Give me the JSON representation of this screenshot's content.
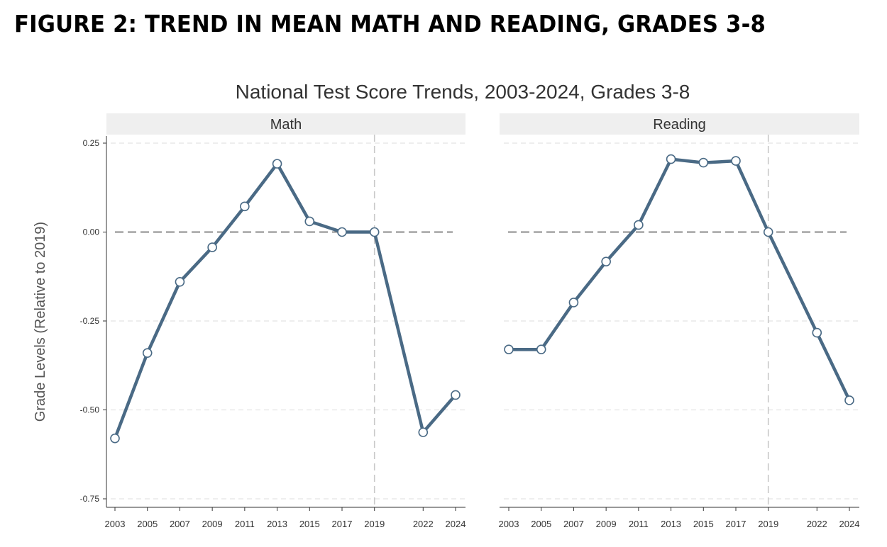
{
  "figure_label": "FIGURE 2: TREND IN MEAN MATH AND READING, GRADES 3-8",
  "chart_data": {
    "type": "line",
    "title": "National Test Score Trends, 2003-2024, Grades 3-8",
    "ylabel": "Grade Levels (Relative to 2019)",
    "xlabel": "",
    "ylim": [
      -0.75,
      0.25
    ],
    "yticks": [
      0.25,
      0.0,
      -0.25,
      -0.5,
      -0.75
    ],
    "ytick_labels": [
      "0.25",
      "0.00",
      "-0.25",
      "-0.50",
      "-0.75"
    ],
    "xlim": [
      2003,
      2024
    ],
    "xticks": [
      2003,
      2005,
      2007,
      2009,
      2011,
      2013,
      2015,
      2017,
      2019,
      2022,
      2024
    ],
    "reference_x": 2019,
    "reference_y": 0.0,
    "grid": true,
    "line_color": "#4a6a85",
    "panels": [
      {
        "name": "Math",
        "x": [
          2003,
          2005,
          2007,
          2009,
          2011,
          2013,
          2015,
          2017,
          2019,
          2022,
          2024
        ],
        "values": [
          -0.58,
          -0.34,
          -0.14,
          -0.043,
          0.072,
          0.192,
          0.03,
          0.0,
          0.0,
          -0.563,
          -0.458
        ]
      },
      {
        "name": "Reading",
        "x": [
          2003,
          2005,
          2007,
          2009,
          2011,
          2013,
          2015,
          2017,
          2019,
          2022,
          2024
        ],
        "values": [
          -0.33,
          -0.33,
          -0.198,
          -0.083,
          0.02,
          0.205,
          0.195,
          0.2,
          0.0,
          -0.283,
          -0.473
        ]
      }
    ]
  }
}
